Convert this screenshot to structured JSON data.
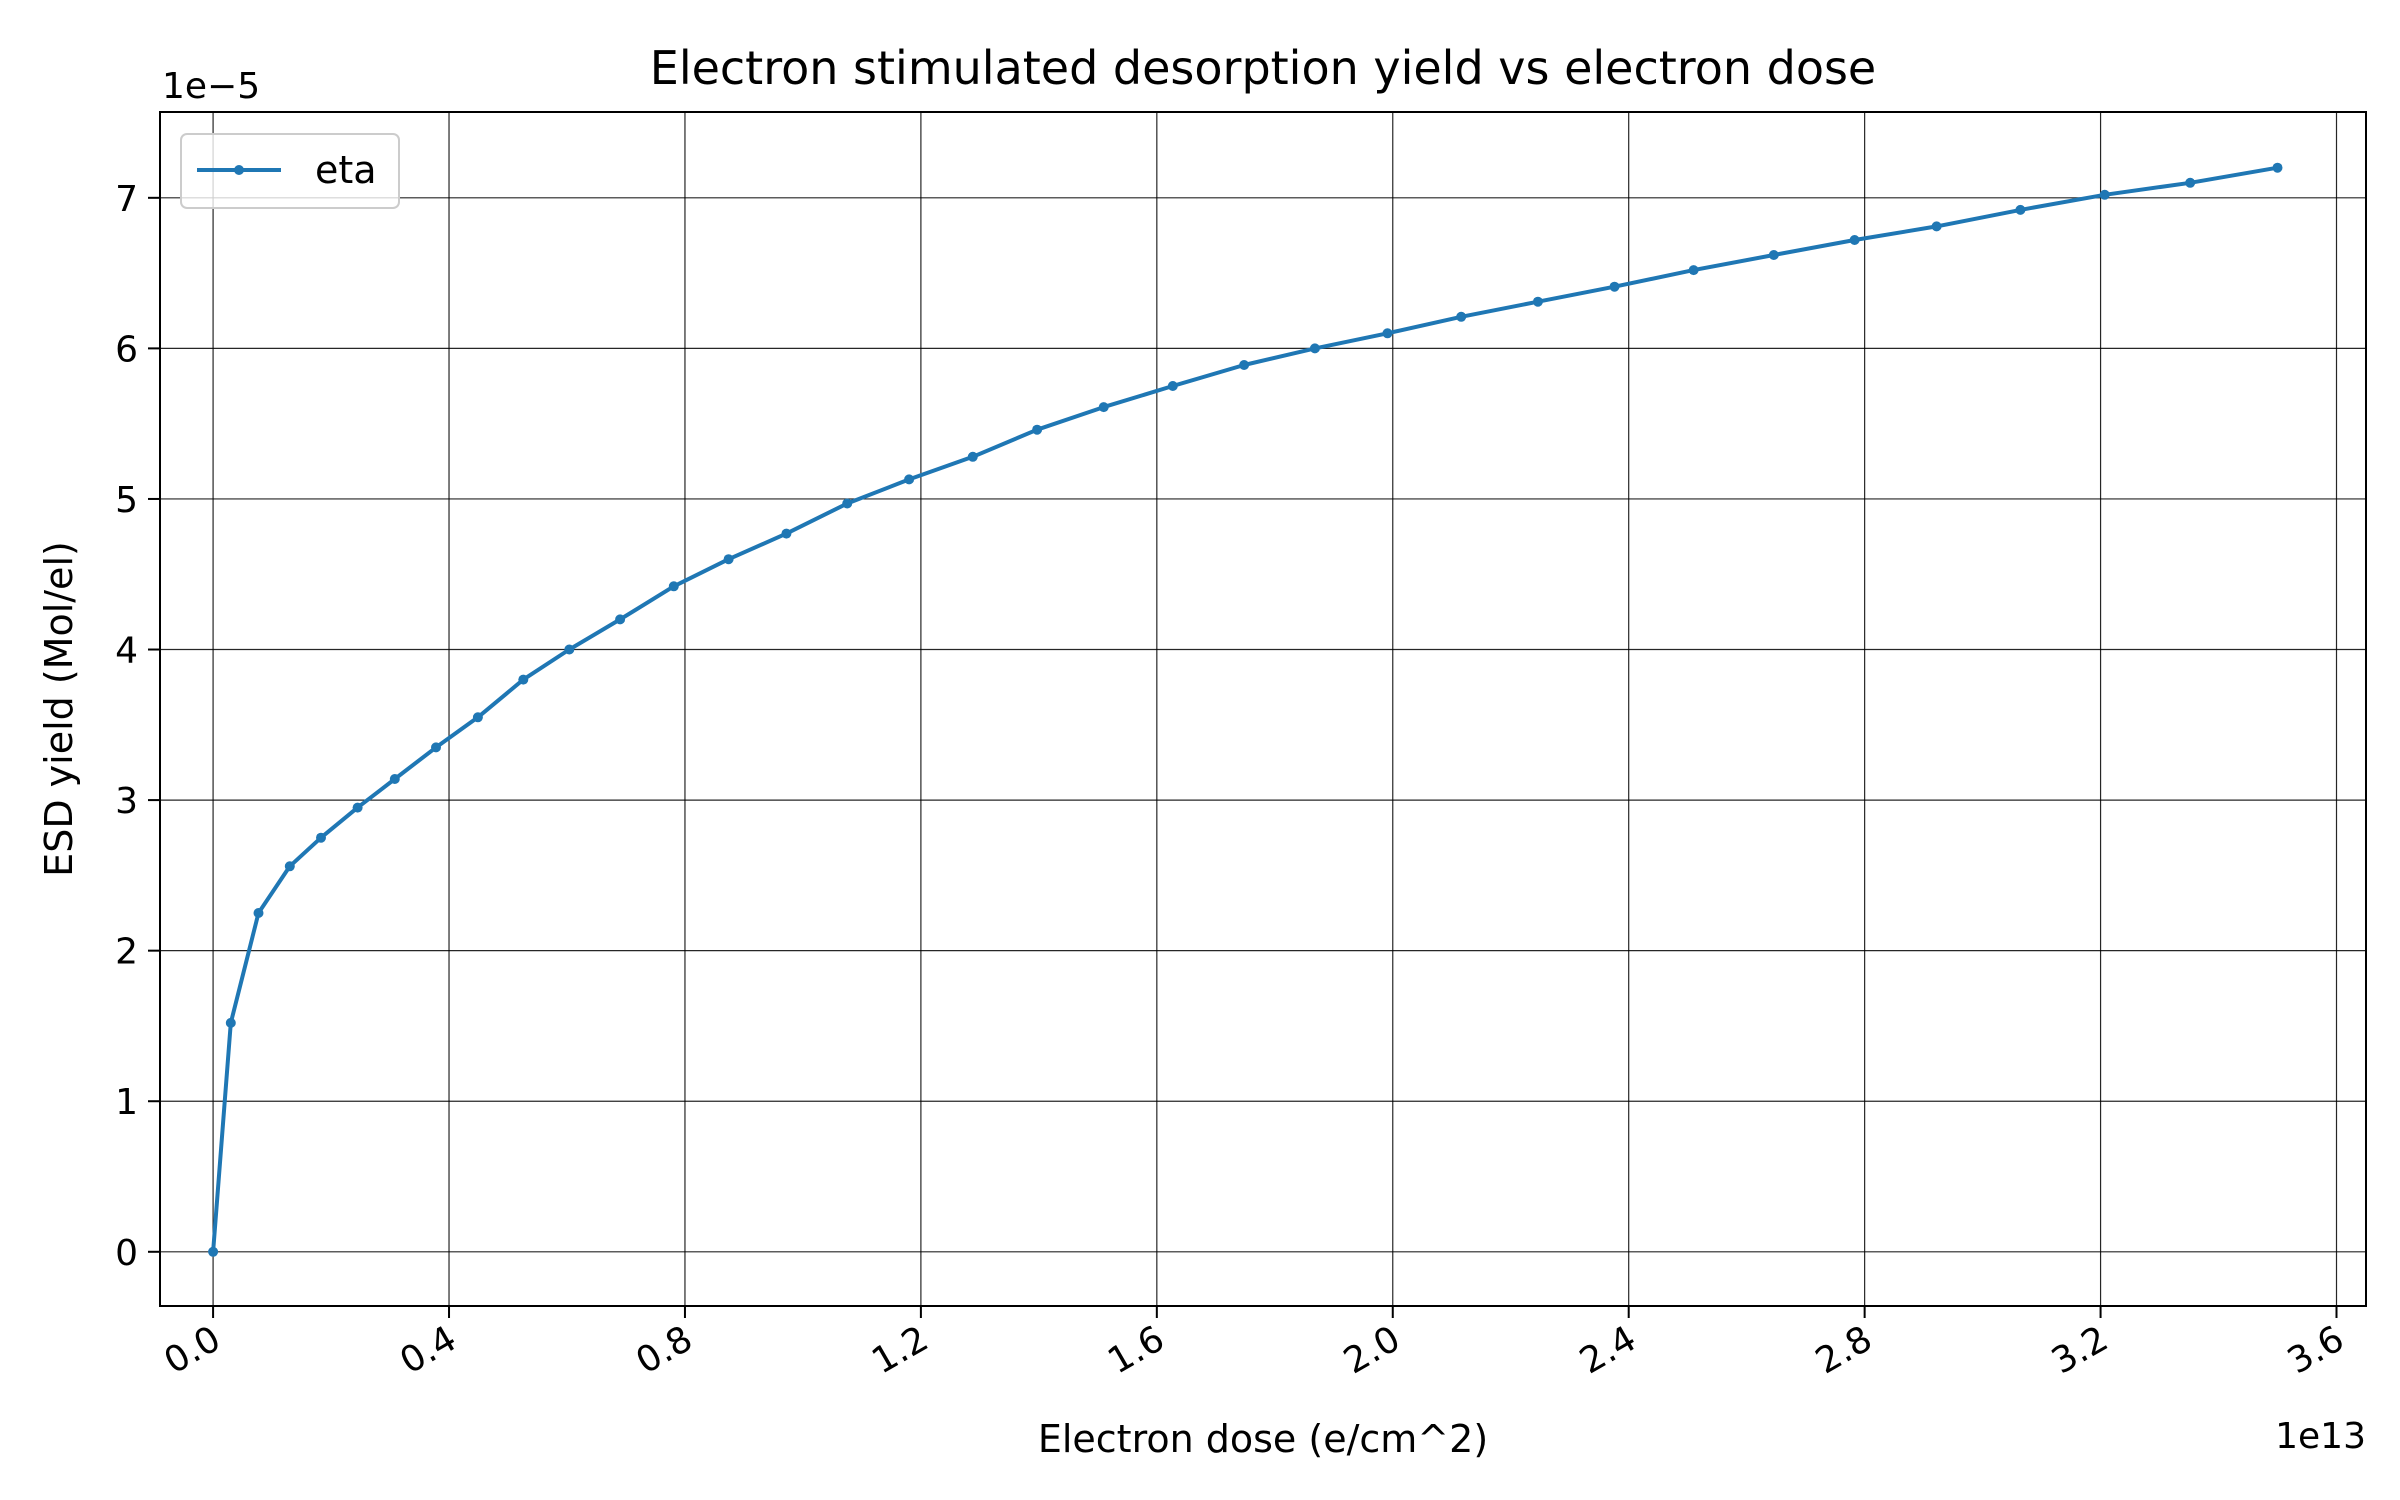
{
  "chart_data": {
    "type": "line",
    "title": "Electron stimulated desorption yield vs electron dose",
    "xlabel": "Electron dose (e/cm^2)",
    "ylabel": "ESD yield (Mol/el)",
    "x_offset_label": "1e13",
    "y_offset_label": "1e−5",
    "xlim": [
      -0.09,
      3.65
    ],
    "ylim": [
      -0.36,
      7.57
    ],
    "x_ticks": [
      0.0,
      0.4,
      0.8,
      1.2,
      1.6,
      2.0,
      2.4,
      2.8,
      3.2,
      3.6
    ],
    "x_tick_labels": [
      "0.0",
      "0.4",
      "0.8",
      "1.2",
      "1.6",
      "2.0",
      "2.4",
      "2.8",
      "3.2",
      "3.6"
    ],
    "y_ticks": [
      0,
      1,
      2,
      3,
      4,
      5,
      6,
      7
    ],
    "y_tick_labels": [
      "0",
      "1",
      "2",
      "3",
      "4",
      "5",
      "6",
      "7"
    ],
    "grid": true,
    "legend_position": "upper-left",
    "series": [
      {
        "name": "eta",
        "color": "#1f77b4",
        "x": [
          0.0,
          0.03,
          0.077,
          0.13,
          0.183,
          0.245,
          0.308,
          0.378,
          0.449,
          0.526,
          0.604,
          0.69,
          0.781,
          0.874,
          0.972,
          1.075,
          1.18,
          1.288,
          1.397,
          1.51,
          1.627,
          1.748,
          1.868,
          1.991,
          2.116,
          2.246,
          2.376,
          2.51,
          2.646,
          2.783,
          2.922,
          3.064,
          3.207,
          3.352,
          3.5
        ],
        "y": [
          0.0,
          1.52,
          2.25,
          2.56,
          2.75,
          2.95,
          3.14,
          3.35,
          3.55,
          3.8,
          4.0,
          4.2,
          4.42,
          4.6,
          4.77,
          4.97,
          5.13,
          5.28,
          5.46,
          5.61,
          5.75,
          5.89,
          6.0,
          6.1,
          6.21,
          6.31,
          6.41,
          6.52,
          6.62,
          6.72,
          6.81,
          6.92,
          7.02,
          7.1,
          7.2
        ]
      }
    ]
  }
}
